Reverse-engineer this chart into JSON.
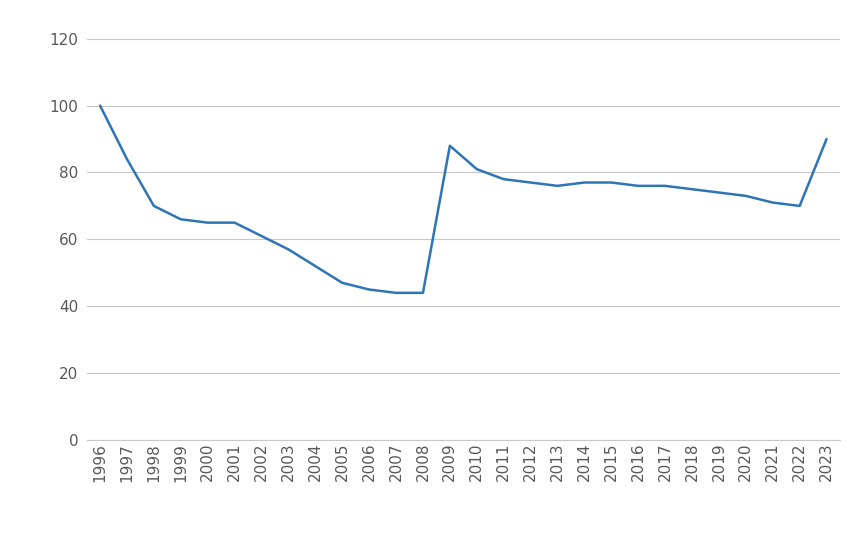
{
  "years": [
    1996,
    1997,
    1998,
    1999,
    2000,
    2001,
    2002,
    2003,
    2004,
    2005,
    2006,
    2007,
    2008,
    2009,
    2010,
    2011,
    2012,
    2013,
    2014,
    2015,
    2016,
    2017,
    2018,
    2019,
    2020,
    2021,
    2022,
    2023
  ],
  "values": [
    100,
    84,
    70,
    66,
    65,
    65,
    61,
    57,
    52,
    47,
    45,
    44,
    44,
    88,
    81,
    78,
    77,
    76,
    77,
    77,
    76,
    76,
    75,
    74,
    73,
    71,
    70,
    90
  ],
  "line_color": "#2E75B6",
  "line_width": 1.8,
  "background_color": "#FFFFFF",
  "grid_color": "#C8C8C8",
  "ylim": [
    0,
    125
  ],
  "yticks": [
    0,
    20,
    40,
    60,
    80,
    100,
    120
  ],
  "tick_label_fontsize": 11,
  "tick_label_color": "#595959"
}
